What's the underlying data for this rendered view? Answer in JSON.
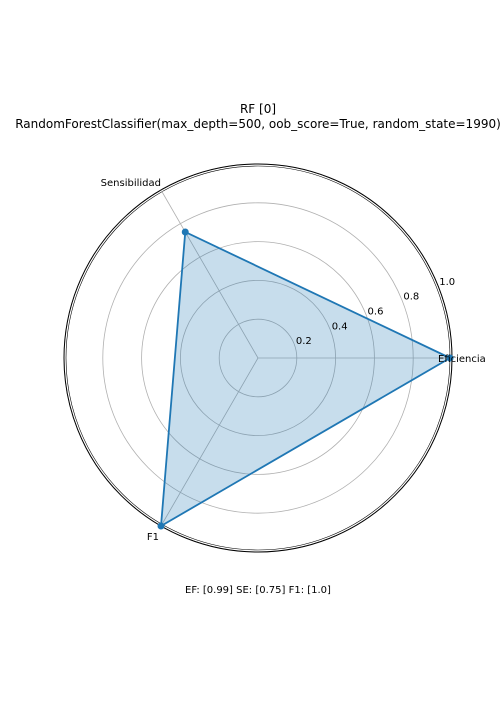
{
  "chart_data": {
    "type": "radar",
    "title": "RF [0]",
    "subtitle": "RandomForestClassifier(max_depth=500, oob_score=True, random_state=1990)",
    "categories": [
      "Eficiencia",
      "Sensibilidad",
      "F1"
    ],
    "values": [
      0.99,
      0.75,
      1.0
    ],
    "rlim": [
      0,
      1.0
    ],
    "r_ticks": [
      "0.2",
      "0.4",
      "0.6",
      "0.8",
      "1.0"
    ],
    "footer": "EF: [0.99] SE: [0.75] F1: [1.0]",
    "grid": true,
    "line_color": "#1f77b4",
    "fill_color": "#1f77b4"
  }
}
